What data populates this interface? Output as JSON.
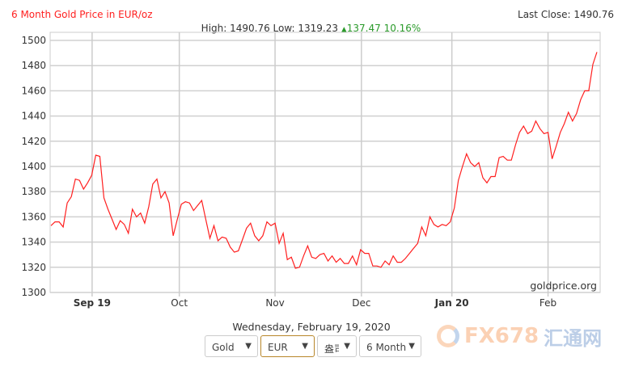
{
  "header": {
    "title": "6 Month Gold Price in EUR/oz",
    "last_close_label": "Last Close: 1490.76",
    "stats_prefix": "High: 1490.76 Low: 1319.23",
    "change_arrow": "▲",
    "change": "137.47 10.16%"
  },
  "chart_data": {
    "type": "line",
    "title": "6 Month Gold Price in EUR/oz",
    "ylim": [
      1300,
      1500
    ],
    "y_ticks": [
      1300,
      1320,
      1340,
      1360,
      1380,
      1400,
      1420,
      1440,
      1460,
      1480,
      1500
    ],
    "x_ticks": [
      {
        "label": "Sep 19",
        "index": 10.1
      },
      {
        "label": "Oct",
        "index": 31.5
      },
      {
        "label": "Nov",
        "index": 55
      },
      {
        "label": "Dec",
        "index": 76.2
      },
      {
        "label": "Jan 20",
        "index": 98.4
      },
      {
        "label": "Feb",
        "index": 122
      }
    ],
    "grid": true,
    "line_color": "#ff2020",
    "watermark": "goldprice.org",
    "values": [
      1353,
      1356,
      1356,
      1352,
      1371,
      1376,
      1390,
      1389,
      1382,
      1387,
      1393,
      1409,
      1408,
      1375,
      1366,
      1358,
      1350,
      1357,
      1354,
      1347,
      1366,
      1360,
      1363,
      1355,
      1368,
      1386,
      1390,
      1375,
      1380,
      1371,
      1345,
      1358,
      1370,
      1372,
      1371,
      1365,
      1369,
      1373,
      1358,
      1343,
      1353,
      1341,
      1344,
      1343,
      1336,
      1332,
      1333,
      1342,
      1351,
      1355,
      1345,
      1341,
      1345,
      1356,
      1353,
      1355,
      1339,
      1347,
      1326,
      1328,
      1319.23,
      1320,
      1329,
      1337,
      1328,
      1327,
      1330,
      1331,
      1325,
      1329,
      1324,
      1327,
      1323,
      1323,
      1329,
      1322,
      1334,
      1331,
      1331,
      1321,
      1321,
      1320,
      1325,
      1322,
      1329,
      1324,
      1324,
      1327,
      1331,
      1335,
      1339,
      1352,
      1345,
      1360,
      1354,
      1352,
      1354,
      1353,
      1356,
      1367,
      1389,
      1400,
      1410,
      1403,
      1400,
      1403,
      1391,
      1387,
      1392,
      1392,
      1407,
      1408,
      1405,
      1405,
      1417,
      1427,
      1432,
      1426,
      1428,
      1436,
      1430,
      1426,
      1427,
      1406,
      1416,
      1427,
      1434,
      1443,
      1436,
      1442,
      1453,
      1460,
      1460,
      1481,
      1490.76
    ]
  },
  "footer": {
    "date": "Wednesday, February 19, 2020",
    "metal": "Gold",
    "currency": "EUR",
    "unit": "盎司",
    "period": "6 Month",
    "arrow": "▼"
  },
  "logo": {
    "text1": "FX678",
    "text2": "汇通网"
  }
}
